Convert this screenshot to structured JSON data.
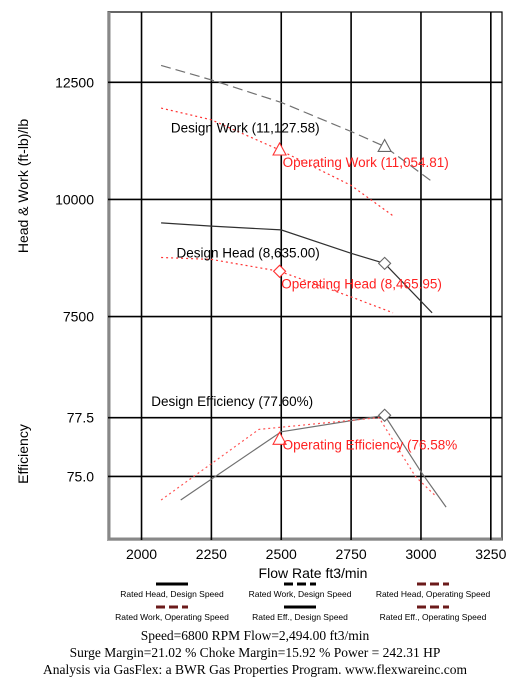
{
  "chart_data": {
    "type": "line",
    "xlabel": "Flow Rate ft3/min",
    "x_ticks": [
      2000,
      2250,
      2500,
      2750,
      3000,
      3250
    ],
    "xlim": [
      1880,
      3290
    ],
    "upper_panel": {
      "ylabel": "Head & Work (ft-lb)/lb",
      "ylim": [
        7000,
        14000
      ],
      "y_ticks": [
        7500,
        10000,
        12500
      ],
      "series": [
        {
          "name": "Rated Work, Design Speed",
          "color": "#707070",
          "dash": "long",
          "x": [
            2070,
            2250,
            2500,
            2750,
            2870,
            3040
          ],
          "y": [
            12860,
            12550,
            12070,
            11450,
            11130,
            10380
          ]
        },
        {
          "name": "Rated Work, Operating Speed",
          "color": "#ff3333",
          "dash": "dot",
          "x": [
            2070,
            2250,
            2494,
            2750,
            2900
          ],
          "y": [
            11950,
            11700,
            11055,
            10300,
            9650
          ]
        },
        {
          "name": "Rated Head, Design Speed",
          "color": "#303030",
          "dash": "solid",
          "x": [
            2070,
            2250,
            2500,
            2750,
            2870,
            3040
          ],
          "y": [
            9500,
            9430,
            9350,
            8850,
            8635,
            7580
          ]
        },
        {
          "name": "Rated Head, Operating Speed",
          "color": "#ff3333",
          "dash": "dot",
          "x": [
            2070,
            2250,
            2494,
            2750,
            2900
          ],
          "y": [
            8760,
            8720,
            8466,
            7920,
            7580
          ]
        }
      ],
      "markers": [
        {
          "shape": "triangle",
          "x": 2870,
          "y": 11130,
          "color": "#666666"
        },
        {
          "shape": "triangle",
          "x": 2494,
          "y": 11055,
          "color": "#ff3333"
        },
        {
          "shape": "diamond",
          "x": 2870,
          "y": 8635,
          "color": "#666666"
        },
        {
          "shape": "diamond",
          "x": 2494,
          "y": 8466,
          "color": "#ff3333"
        }
      ],
      "annotations": [
        {
          "text": "Design Work (11,127.58)",
          "x": 2105,
          "y": 11430,
          "color": "#000000"
        },
        {
          "text": "Operating Work (11,054.81)",
          "x": 2505,
          "y": 10690,
          "color": "#ff2222"
        },
        {
          "text": "Design Head (8,635.00)",
          "x": 2125,
          "y": 8760,
          "color": "#000000"
        },
        {
          "text": "Operating Head (8,465.95)",
          "x": 2500,
          "y": 8100,
          "color": "#ff2222"
        }
      ]
    },
    "lower_panel": {
      "ylabel": "Efficiency",
      "ylim": [
        72.3,
        80.8
      ],
      "y_ticks": [
        75.0,
        77.5
      ],
      "series": [
        {
          "name": "Rated Eff., Design Speed",
          "color": "#707070",
          "dash": "solid",
          "x": [
            2140,
            2500,
            2870,
            3000,
            3090
          ],
          "y": [
            74.0,
            76.9,
            77.6,
            75.2,
            73.7
          ]
        },
        {
          "name": "Rated Eff., Operating Speed",
          "color": "#ff5555",
          "dash": "dot",
          "x": [
            2070,
            2420,
            2850,
            2980,
            3050
          ],
          "y": [
            74.0,
            77.0,
            77.5,
            75.0,
            74.2
          ]
        }
      ],
      "markers": [
        {
          "shape": "diamond",
          "x": 2870,
          "y": 77.6,
          "color": "#666666"
        },
        {
          "shape": "triangle",
          "x": 2494,
          "y": 76.58,
          "color": "#ff3333"
        }
      ],
      "annotations": [
        {
          "text": "Design Efficiency (77.60%)",
          "x": 2035,
          "y": 78.0,
          "color": "#000000"
        },
        {
          "text": "Operating Efficiency (76.58%",
          "x": 2505,
          "y": 76.15,
          "color": "#ff2222"
        }
      ]
    },
    "legend": [
      {
        "label": "Rated Head, Design Speed",
        "color": "#000000",
        "dash": "solid",
        "row": 1,
        "col": 1
      },
      {
        "label": "Rated Work, Design Speed",
        "color": "#000000",
        "dash": "dash",
        "row": 1,
        "col": 2
      },
      {
        "label": "Rated Head, Operating Speed",
        "color": "#6b1a1a",
        "dash": "dash",
        "row": 1,
        "col": 3
      },
      {
        "label": "Rated Work, Operating Speed",
        "color": "#6b1a1a",
        "dash": "dash",
        "row": 2,
        "col": 1
      },
      {
        "label": "Rated Eff., Design Speed",
        "color": "#000000",
        "dash": "solid",
        "row": 2,
        "col": 2
      },
      {
        "label": "Rated Eff., Operating Speed",
        "color": "#6b1a1a",
        "dash": "dash",
        "row": 2,
        "col": 3
      }
    ]
  },
  "footer": {
    "line1": "Speed=6800 RPM Flow=2,494.00 ft3/min",
    "line2": "Surge Margin=21.02 % Choke Margin=15.92 % Power = 242.31 HP",
    "line3": "Analysis via GasFlex: a BWR Gas Properties Program. www.flexwareinc.com"
  }
}
